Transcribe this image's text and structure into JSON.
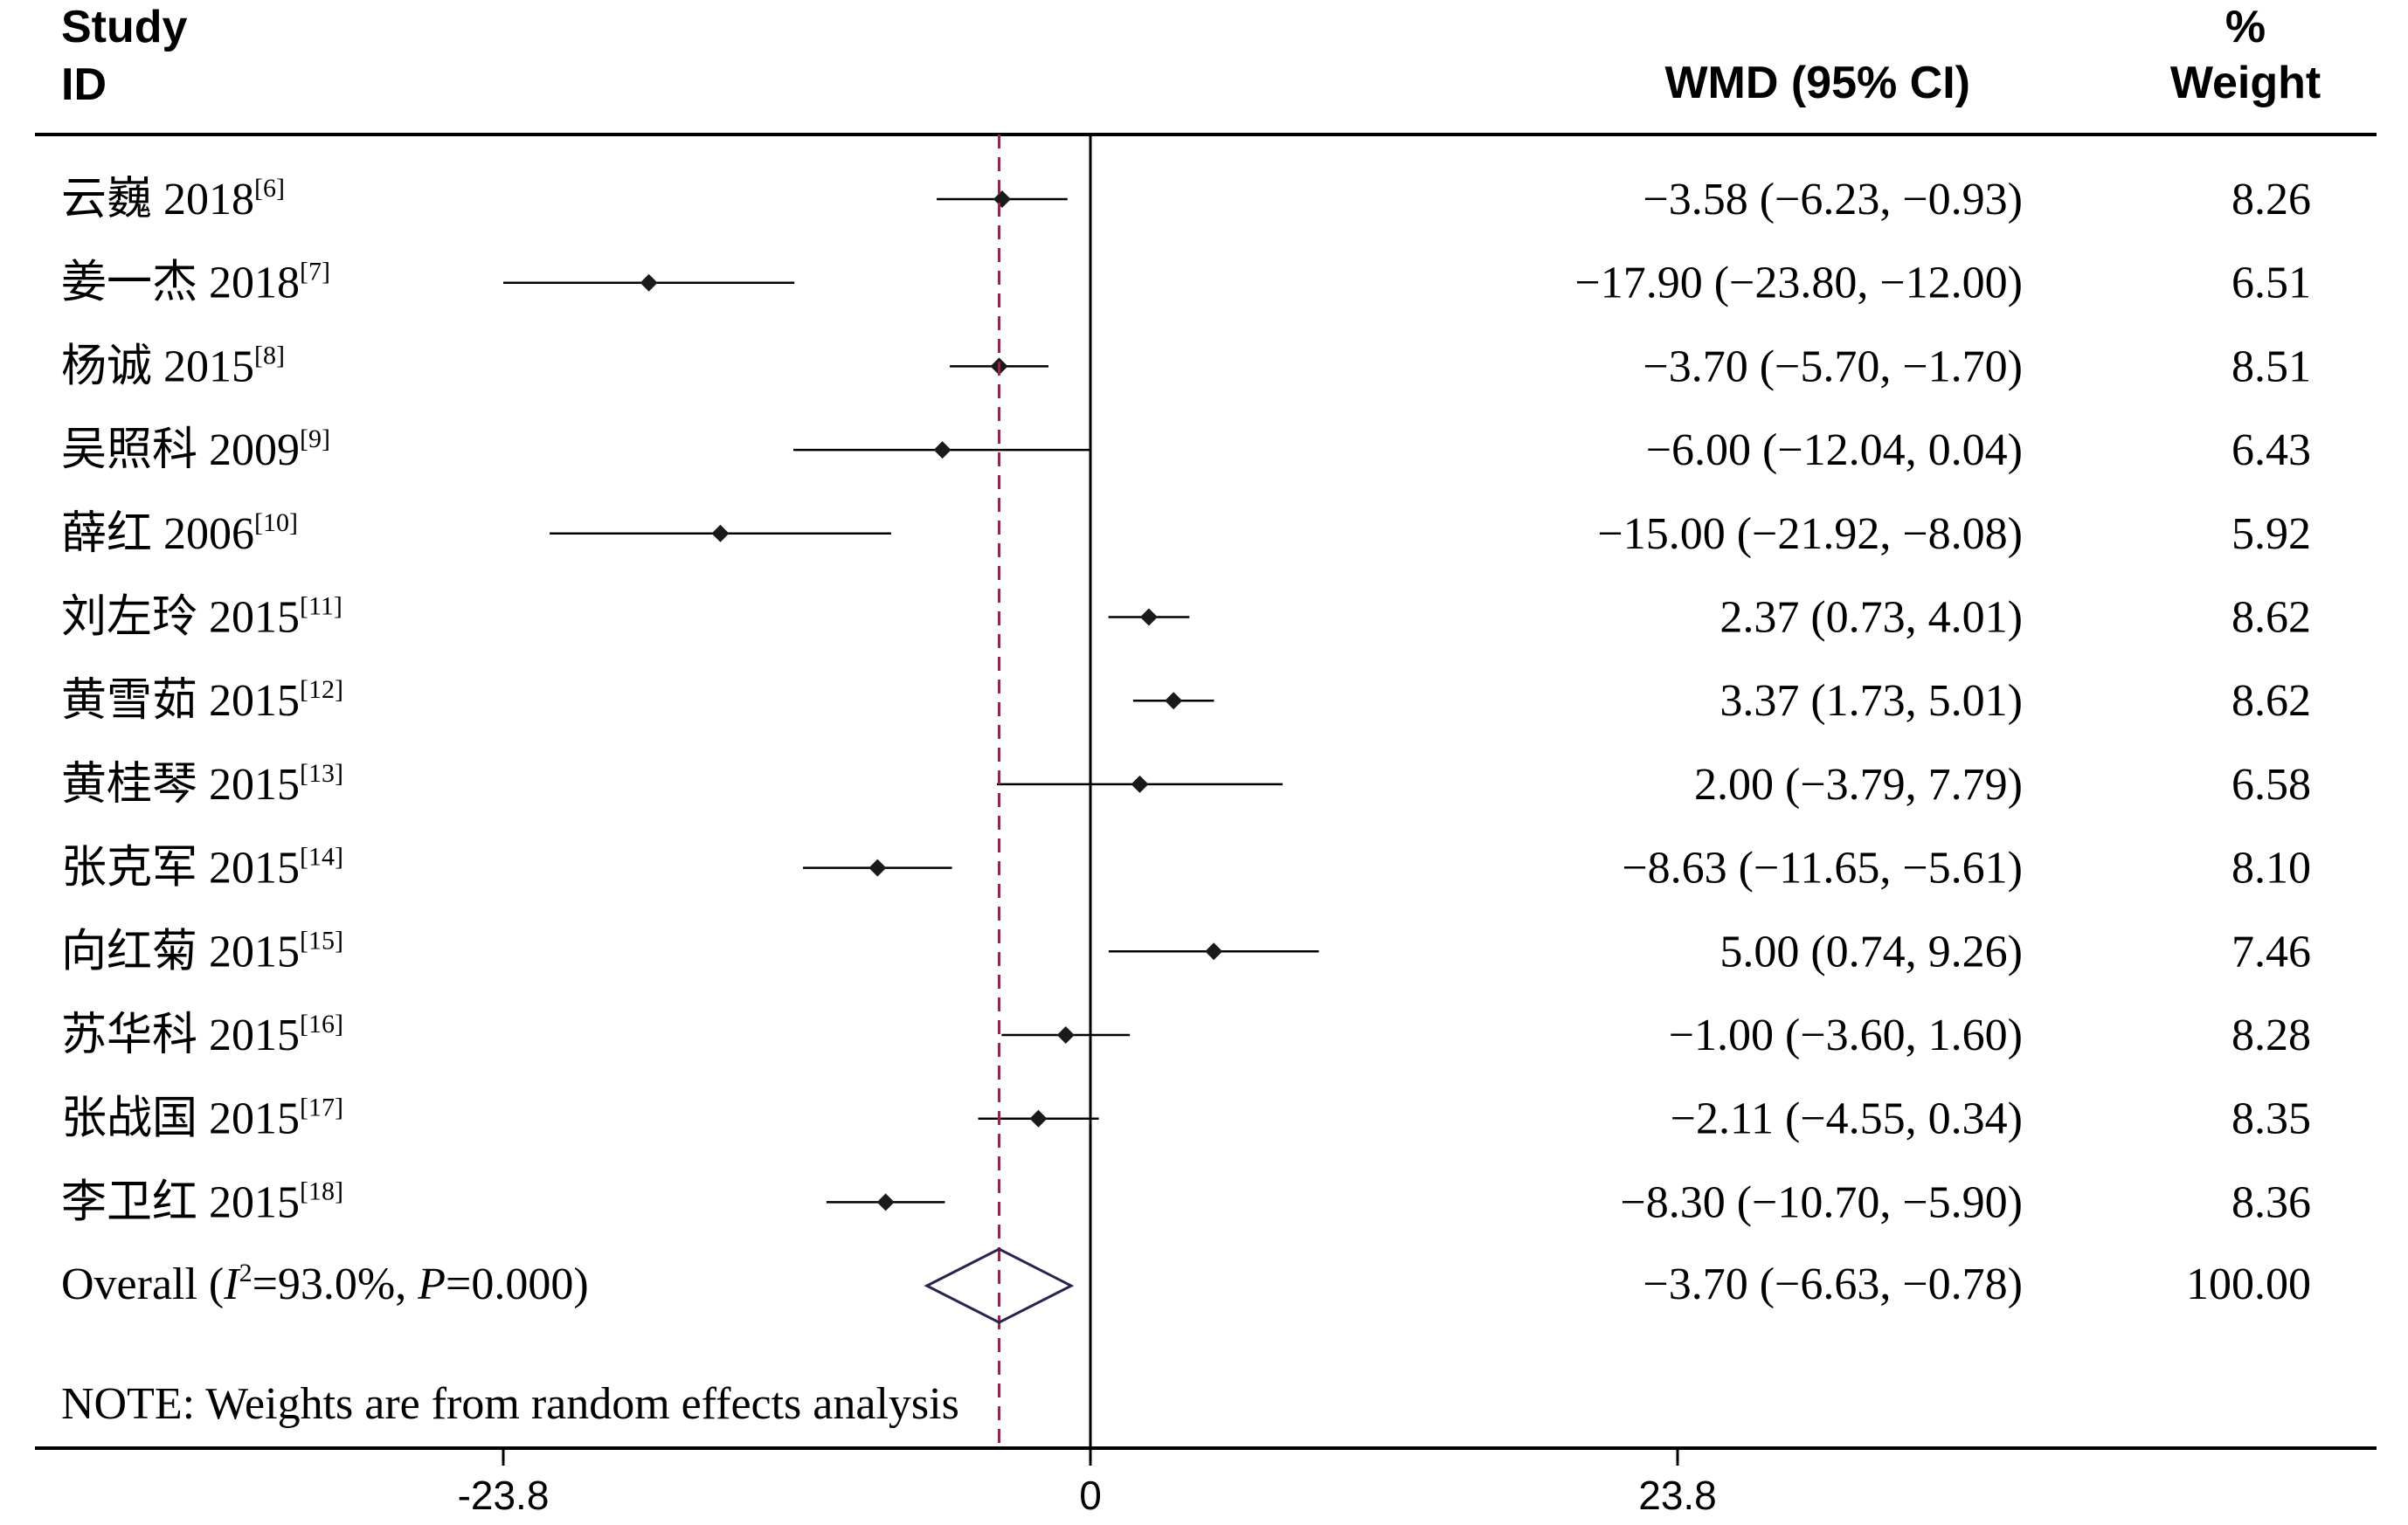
{
  "chart_data": {
    "type": "forest",
    "headers": {
      "study_line1": "Study",
      "study_line2": "ID",
      "effect": "WMD (95% CI)",
      "weight_line1": "%",
      "weight_line2": "Weight"
    },
    "studies": [
      {
        "name": "云巍 2018",
        "ref": "[6]",
        "wmd": -3.58,
        "lower": -6.23,
        "upper": -0.93,
        "label": "−3.58 (−6.23, −0.93)",
        "weight": "8.26"
      },
      {
        "name": "姜一杰 2018",
        "ref": "[7]",
        "wmd": -17.9,
        "lower": -23.8,
        "upper": -12.0,
        "label": "−17.90 (−23.80, −12.00)",
        "weight": "6.51"
      },
      {
        "name": "杨诚 2015",
        "ref": "[8]",
        "wmd": -3.7,
        "lower": -5.7,
        "upper": -1.7,
        "label": "−3.70 (−5.70, −1.70)",
        "weight": "8.51"
      },
      {
        "name": "吴照科 2009",
        "ref": "[9]",
        "wmd": -6.0,
        "lower": -12.04,
        "upper": 0.04,
        "label": "−6.00 (−12.04, 0.04)",
        "weight": "6.43"
      },
      {
        "name": "薛红 2006",
        "ref": "[10]",
        "wmd": -15.0,
        "lower": -21.92,
        "upper": -8.08,
        "label": "−15.00 (−21.92, −8.08)",
        "weight": "5.92"
      },
      {
        "name": "刘左玲 2015",
        "ref": "[11]",
        "wmd": 2.37,
        "lower": 0.73,
        "upper": 4.01,
        "label": "2.37 (0.73, 4.01)",
        "weight": "8.62"
      },
      {
        "name": "黄雪茹 2015",
        "ref": "[12]",
        "wmd": 3.37,
        "lower": 1.73,
        "upper": 5.01,
        "label": "3.37 (1.73, 5.01)",
        "weight": "8.62"
      },
      {
        "name": "黄桂琴 2015",
        "ref": "[13]",
        "wmd": 2.0,
        "lower": -3.79,
        "upper": 7.79,
        "label": "2.00 (−3.79, 7.79)",
        "weight": "6.58"
      },
      {
        "name": "张克军 2015",
        "ref": "[14]",
        "wmd": -8.63,
        "lower": -11.65,
        "upper": -5.61,
        "label": "−8.63 (−11.65, −5.61)",
        "weight": "8.10"
      },
      {
        "name": "向红菊 2015",
        "ref": "[15]",
        "wmd": 5.0,
        "lower": 0.74,
        "upper": 9.26,
        "label": "5.00 (0.74, 9.26)",
        "weight": "7.46"
      },
      {
        "name": "苏华科 2015",
        "ref": "[16]",
        "wmd": -1.0,
        "lower": -3.6,
        "upper": 1.6,
        "label": "−1.00 (−3.60, 1.60)",
        "weight": "8.28"
      },
      {
        "name": "张战国 2015",
        "ref": "[17]",
        "wmd": -2.11,
        "lower": -4.55,
        "upper": 0.34,
        "label": "−2.11 (−4.55, 0.34)",
        "weight": "8.35"
      },
      {
        "name": "李卫红 2015",
        "ref": "[18]",
        "wmd": -8.3,
        "lower": -10.7,
        "upper": -5.9,
        "label": "−8.30 (−10.70, −5.90)",
        "weight": "8.36"
      }
    ],
    "overall": {
      "prefix": "Overall  (",
      "i2_symbol": "I",
      "i2_exp": "2",
      "i2_text": "=93.0%, ",
      "p_symbol": "P",
      "p_text": "=0.000)",
      "wmd": -3.7,
      "lower": -6.63,
      "upper": -0.78,
      "label": "−3.70 (−6.63, −0.78)",
      "weight": "100.00"
    },
    "note": "NOTE: Weights are from random effects analysis",
    "x_ticks": [
      {
        "value": -23.8,
        "label": "-23.8"
      },
      {
        "value": 0,
        "label": "0"
      },
      {
        "value": 23.8,
        "label": "23.8"
      }
    ],
    "xlim": [
      -23.8,
      23.8
    ],
    "null_line": 0,
    "colors": {
      "marker": "#1a1a1a",
      "overall_diamond": "#2b2250",
      "overall_line": "#8b2a46"
    }
  }
}
